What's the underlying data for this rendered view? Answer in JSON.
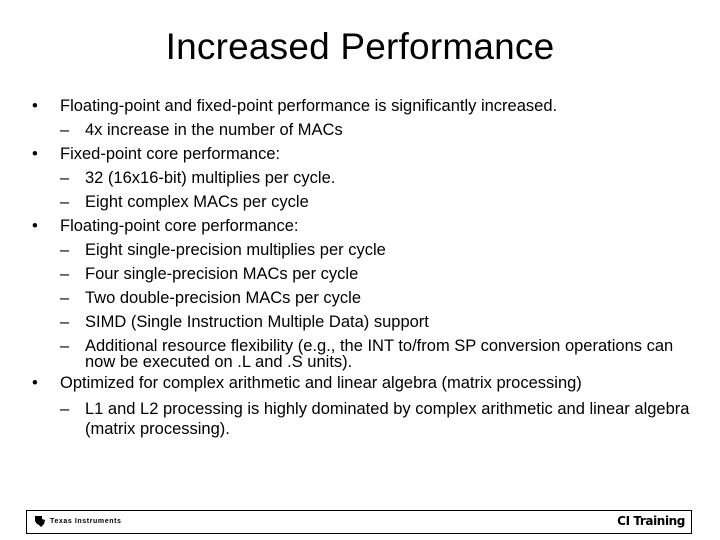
{
  "slide": {
    "title": "Increased Performance",
    "bullets": [
      {
        "text": "Floating-point and fixed-point performance is significantly increased.",
        "subs": [
          "4x increase in the number of MACs"
        ]
      },
      {
        "text": "Fixed-point core performance:",
        "subs": [
          "32 (16x16-bit) multiplies per cycle.",
          "Eight complex MACs per cycle"
        ]
      },
      {
        "text": "Floating-point core performance:",
        "subs": [
          "Eight single-precision multiplies per cycle",
          "Four single-precision MACs per cycle",
          "Two double-precision MACs per cycle",
          "SIMD (Single Instruction Multiple Data) support",
          "Additional resource flexibility (e.g., the INT to/from SP conversion operations can now be executed on .L and .S units)."
        ]
      },
      {
        "text": "Optimized for complex arithmetic and linear algebra (matrix processing)",
        "subs": [
          "L1 and L2 processing is highly dominated by complex arithmetic and linear algebra (matrix processing)."
        ]
      }
    ]
  },
  "footer": {
    "logo_text": "Texas Instruments",
    "right_text": "CI Training"
  }
}
